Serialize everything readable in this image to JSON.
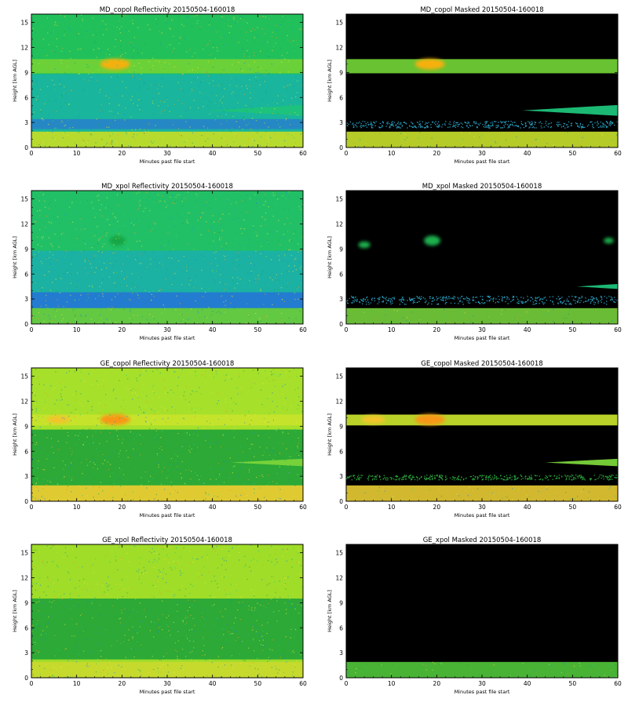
{
  "chart_data": [
    {
      "type": "heatmap",
      "id": "md_copol_refl",
      "title": "MD_copol Reflectivity 20150504-160018",
      "xlabel": "Minutes past file start",
      "ylabel": "Height [km AGL]",
      "xlim": [
        0,
        60
      ],
      "ylim": [
        0,
        16
      ],
      "xticks": [
        "0",
        "10",
        "20",
        "30",
        "40",
        "50",
        "60"
      ],
      "yticks": [
        "0",
        "3",
        "6",
        "9",
        "12",
        "15"
      ],
      "masked": false,
      "background": "#21c05a",
      "features": [
        {
          "kind": "band",
          "y0": 8.9,
          "y1": 10.6,
          "x0": 0,
          "x1": 60,
          "color": "#72d235"
        },
        {
          "kind": "blob",
          "x": 18.5,
          "y": 10,
          "rx": 3.3,
          "ry": 0.65,
          "color": "#f6b00f"
        },
        {
          "kind": "band",
          "y0": 1.9,
          "y1": 8.8,
          "x0": 0,
          "x1": 60,
          "color": "#19b4a2"
        },
        {
          "kind": "band",
          "y0": 2.2,
          "y1": 3.4,
          "x0": 0,
          "x1": 60,
          "color": "#2783c9"
        },
        {
          "kind": "layer",
          "y0": 3.8,
          "y1": 5.1,
          "x0": 39,
          "x1": 60,
          "color": "#1ec37a"
        },
        {
          "kind": "band",
          "y0": 0,
          "y1": 1.9,
          "x0": 0,
          "x1": 60,
          "color": "#c4dc2b"
        }
      ]
    },
    {
      "type": "heatmap",
      "id": "md_copol_masked",
      "title": "MD_copol Masked 20150504-160018",
      "xlabel": "Minutes past file start",
      "ylabel": "Height [km AGL]",
      "xlim": [
        0,
        60
      ],
      "ylim": [
        0,
        16
      ],
      "xticks": [
        "0",
        "10",
        "20",
        "30",
        "40",
        "50",
        "60"
      ],
      "yticks": [
        "0",
        "3",
        "6",
        "9",
        "12",
        "15"
      ],
      "masked": true,
      "background": "#000000",
      "features": [
        {
          "kind": "band",
          "y0": 8.9,
          "y1": 10.6,
          "x0": 0,
          "x1": 60,
          "color": "#72d235"
        },
        {
          "kind": "blob",
          "x": 18.5,
          "y": 10,
          "rx": 3.3,
          "ry": 0.65,
          "color": "#f6b00f"
        },
        {
          "kind": "layer",
          "y0": 3.8,
          "y1": 5.1,
          "x0": 39,
          "x1": 60,
          "color": "#1ec37a"
        },
        {
          "kind": "speckle",
          "y0": 2.4,
          "y1": 3.2,
          "x0": 0,
          "x1": 60,
          "color": "#2a9fc0"
        },
        {
          "kind": "band",
          "y0": 0,
          "y1": 1.9,
          "x0": 0,
          "x1": 60,
          "color": "#c4dc2b"
        }
      ]
    },
    {
      "type": "heatmap",
      "id": "md_xpol_refl",
      "title": "MD_xpol Reflectivity 20150504-160018",
      "xlabel": "Minutes past file start",
      "ylabel": "Height [km AGL]",
      "xlim": [
        0,
        60
      ],
      "ylim": [
        0,
        16
      ],
      "xticks": [
        "0",
        "10",
        "20",
        "30",
        "40",
        "50",
        "60"
      ],
      "yticks": [
        "0",
        "3",
        "6",
        "9",
        "12",
        "15"
      ],
      "masked": false,
      "background": "#22c066",
      "features": [
        {
          "kind": "band",
          "y0": 1.9,
          "y1": 8.8,
          "x0": 0,
          "x1": 60,
          "color": "#1bb0a8"
        },
        {
          "kind": "band",
          "y0": 1.9,
          "y1": 3.8,
          "x0": 0,
          "x1": 60,
          "color": "#2477d4"
        },
        {
          "kind": "blob",
          "x": 19,
          "y": 10,
          "rx": 1.8,
          "ry": 0.6,
          "color": "#15a644"
        },
        {
          "kind": "band",
          "y0": 0,
          "y1": 1.9,
          "x0": 0,
          "x1": 60,
          "color": "#69c93f"
        }
      ]
    },
    {
      "type": "heatmap",
      "id": "md_xpol_masked",
      "title": "MD_xpol Masked 20150504-160018",
      "xlabel": "Minutes past file start",
      "ylabel": "Height [km AGL]",
      "xlim": [
        0,
        60
      ],
      "ylim": [
        0,
        16
      ],
      "xticks": [
        "0",
        "10",
        "20",
        "30",
        "40",
        "50",
        "60"
      ],
      "yticks": [
        "0",
        "3",
        "6",
        "9",
        "12",
        "15"
      ],
      "masked": true,
      "background": "#000000",
      "features": [
        {
          "kind": "blob",
          "x": 19,
          "y": 10,
          "rx": 1.8,
          "ry": 0.6,
          "color": "#1fb04e"
        },
        {
          "kind": "blob",
          "x": 4,
          "y": 9.5,
          "rx": 1.3,
          "ry": 0.4,
          "color": "#1fb04e"
        },
        {
          "kind": "blob",
          "x": 58,
          "y": 10,
          "rx": 1.1,
          "ry": 0.35,
          "color": "#1fb04e"
        },
        {
          "kind": "layer",
          "y0": 4.2,
          "y1": 4.8,
          "x0": 51,
          "x1": 60,
          "color": "#1ec37a"
        },
        {
          "kind": "speckle",
          "y0": 2.4,
          "y1": 3.4,
          "x0": 0,
          "x1": 60,
          "color": "#2a9fc0"
        },
        {
          "kind": "band",
          "y0": 0,
          "y1": 1.9,
          "x0": 0,
          "x1": 60,
          "color": "#73cb3b"
        }
      ]
    },
    {
      "type": "heatmap",
      "id": "ge_copol_refl",
      "title": "GE_copol Reflectivity 20150504-160018",
      "xlabel": "Minutes past file start",
      "ylabel": "Height [km AGL]",
      "xlim": [
        0,
        60
      ],
      "ylim": [
        0,
        16
      ],
      "xticks": [
        "0",
        "10",
        "20",
        "30",
        "40",
        "50",
        "60"
      ],
      "yticks": [
        "0",
        "3",
        "6",
        "9",
        "12",
        "15"
      ],
      "masked": false,
      "background": "#a6e02a",
      "features": [
        {
          "kind": "band",
          "y0": 1.9,
          "y1": 8.6,
          "x0": 0,
          "x1": 60,
          "color": "#22a437"
        },
        {
          "kind": "band",
          "y0": 9.1,
          "y1": 10.4,
          "x0": 0,
          "x1": 60,
          "color": "#c9e32c"
        },
        {
          "kind": "blob",
          "x": 18.5,
          "y": 9.8,
          "rx": 3.3,
          "ry": 0.65,
          "color": "#f79712"
        },
        {
          "kind": "blob",
          "x": 6,
          "y": 9.8,
          "rx": 2.6,
          "ry": 0.5,
          "color": "#f2c52a"
        },
        {
          "kind": "layer",
          "y0": 4.2,
          "y1": 5.1,
          "x0": 44,
          "x1": 60,
          "color": "#7ad43a"
        },
        {
          "kind": "band",
          "y0": 0,
          "y1": 1.9,
          "x0": 0,
          "x1": 60,
          "color": "#e4c833"
        }
      ]
    },
    {
      "type": "heatmap",
      "id": "ge_copol_masked",
      "title": "GE_copol Masked 20150504-160018",
      "xlabel": "Minutes past file start",
      "ylabel": "Height [km AGL]",
      "xlim": [
        0,
        60
      ],
      "ylim": [
        0,
        16
      ],
      "xticks": [
        "0",
        "10",
        "20",
        "30",
        "40",
        "50",
        "60"
      ],
      "yticks": [
        "0",
        "3",
        "6",
        "9",
        "12",
        "15"
      ],
      "masked": true,
      "background": "#000000",
      "features": [
        {
          "kind": "band",
          "y0": 9.1,
          "y1": 10.4,
          "x0": 0,
          "x1": 60,
          "color": "#c9e32c"
        },
        {
          "kind": "blob",
          "x": 18.5,
          "y": 9.8,
          "rx": 3.3,
          "ry": 0.65,
          "color": "#f79712"
        },
        {
          "kind": "blob",
          "x": 6,
          "y": 9.8,
          "rx": 2.6,
          "ry": 0.5,
          "color": "#f2c52a"
        },
        {
          "kind": "layer",
          "y0": 4.2,
          "y1": 5.1,
          "x0": 44,
          "x1": 60,
          "color": "#7ad43a"
        },
        {
          "kind": "speckle",
          "y0": 2.6,
          "y1": 3.2,
          "x0": 0,
          "x1": 60,
          "color": "#2aa53c"
        },
        {
          "kind": "band",
          "y0": 0,
          "y1": 1.9,
          "x0": 0,
          "x1": 60,
          "color": "#e4c833"
        }
      ]
    },
    {
      "type": "heatmap",
      "id": "ge_xpol_refl",
      "title": "GE_xpol Reflectivity 20150504-160018",
      "xlabel": "Minutes past file start",
      "ylabel": "Height [km AGL]",
      "xlim": [
        0,
        60
      ],
      "ylim": [
        0,
        16
      ],
      "xticks": [
        "0",
        "10",
        "20",
        "30",
        "40",
        "50",
        "60"
      ],
      "yticks": [
        "0",
        "3",
        "6",
        "9",
        "12",
        "15"
      ],
      "masked": false,
      "background": "#9fdd28",
      "features": [
        {
          "kind": "band",
          "y0": 2.2,
          "y1": 9.5,
          "x0": 0,
          "x1": 60,
          "color": "#22a437"
        },
        {
          "kind": "band",
          "y0": 0,
          "y1": 1.9,
          "x0": 0,
          "x1": 60,
          "color": "#c9d92f"
        }
      ]
    },
    {
      "type": "heatmap",
      "id": "ge_xpol_masked",
      "title": "GE_xpol Masked 20150504-160018",
      "xlabel": "Minutes past file start",
      "ylabel": "Height [km AGL]",
      "xlim": [
        0,
        60
      ],
      "ylim": [
        0,
        16
      ],
      "xticks": [
        "0",
        "10",
        "20",
        "30",
        "40",
        "50",
        "60"
      ],
      "yticks": [
        "0",
        "3",
        "6",
        "9",
        "12",
        "15"
      ],
      "masked": true,
      "background": "#000000",
      "features": [
        {
          "kind": "band",
          "y0": 0,
          "y1": 1.9,
          "x0": 0,
          "x1": 60,
          "color": "#4fc23a"
        }
      ]
    }
  ]
}
